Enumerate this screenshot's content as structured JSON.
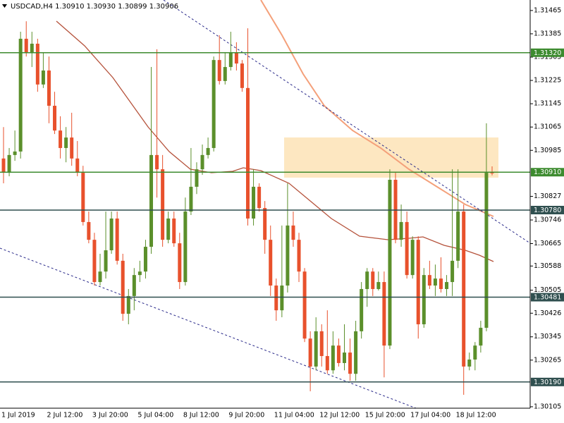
{
  "chart_data": {
    "type": "candlestick",
    "title": "USDCAD,H4  1.30910 1.30930 1.30899 1.30906",
    "categories": [
      "1 Jul 2019",
      null,
      null,
      null,
      null,
      null,
      null,
      null,
      "2 Jul 12:00",
      null,
      null,
      null,
      null,
      null,
      null,
      null,
      "3 Jul 20:00",
      null,
      null,
      null,
      null,
      null,
      null,
      null,
      "5 Jul 04:00",
      null,
      null,
      null,
      null,
      null,
      null,
      null,
      "8 Jul 12:00",
      null,
      null,
      null,
      null,
      null,
      null,
      null,
      "9 Jul 20:00",
      null,
      null,
      null,
      null,
      null,
      null,
      null,
      "11 Jul 04:00",
      null,
      null,
      null,
      null,
      null,
      null,
      null,
      "12 Jul 12:00",
      null,
      null,
      null,
      null,
      null,
      null,
      null,
      "15 Jul 20:00",
      null,
      null,
      null,
      null,
      null,
      null,
      null,
      "17 Jul 04:00",
      null,
      null,
      null,
      null,
      null,
      null,
      null,
      "18 Jul 12:00",
      null,
      null,
      null,
      null,
      null,
      null
    ],
    "open": [
      1.30957,
      1.30908,
      1.30969,
      1.30981,
      1.31368,
      1.3132,
      1.31351,
      1.31211,
      1.31259,
      1.31138,
      1.31053,
      1.30993,
      1.31029,
      1.30957,
      1.30908,
      1.30739,
      1.30678,
      1.30533,
      1.30569,
      1.30642,
      1.30751,
      1.30606,
      1.30424,
      1.30485,
      1.30557,
      1.30569,
      1.30654,
      1.30969,
      1.3092,
      1.30678,
      1.30751,
      1.30666,
      1.30533,
      1.30775,
      1.3086,
      1.3092,
      1.30969,
      1.30993,
      1.31295,
      1.31223,
      1.31271,
      1.3132,
      1.31283,
      1.31199,
      1.30751,
      1.3086,
      1.30787,
      1.30678,
      1.30521,
      1.30436,
      1.30521,
      1.30727,
      1.30678,
      1.30569,
      1.30339,
      1.30243,
      1.30364,
      1.30279,
      1.3023,
      1.30315,
      1.30255,
      1.30291,
      1.30218,
      1.30364,
      1.30509,
      1.30569,
      1.30509,
      1.30533,
      1.30315,
      1.30884,
      1.30678,
      1.30739,
      1.30557,
      1.30678,
      1.30388,
      1.30557,
      1.30521,
      1.30545,
      1.30509,
      1.30533,
      1.30606,
      1.30775,
      1.30243,
      1.30267,
      1.30315,
      1.30376,
      1.3091
    ],
    "high": [
      1.31065,
      1.30993,
      1.31053,
      1.31392,
      1.31428,
      1.31392,
      1.31368,
      1.3132,
      1.31307,
      1.31186,
      1.31102,
      1.31065,
      1.31114,
      1.31017,
      1.30932,
      1.30775,
      1.30702,
      1.3063,
      1.30775,
      1.30775,
      1.30775,
      1.3063,
      1.30509,
      1.30581,
      1.30606,
      1.30678,
      1.31271,
      1.31332,
      1.30969,
      1.30775,
      1.30775,
      1.30702,
      1.30823,
      1.30993,
      1.30944,
      1.31005,
      1.31029,
      1.31307,
      1.3138,
      1.3132,
      1.31392,
      1.31356,
      1.31295,
      1.31404,
      1.3092,
      1.30872,
      1.30811,
      1.30727,
      1.30545,
      1.30727,
      1.30872,
      1.30775,
      1.30702,
      1.30581,
      1.30364,
      1.30412,
      1.30388,
      1.30436,
      1.30364,
      1.30339,
      1.30388,
      1.30339,
      1.304,
      1.30533,
      1.30581,
      1.30581,
      1.30569,
      1.30569,
      1.3092,
      1.30908,
      1.30799,
      1.30775,
      1.3069,
      1.3069,
      1.30581,
      1.30606,
      1.30593,
      1.30618,
      1.30557,
      1.3092,
      1.3092,
      1.30799,
      1.30291,
      1.30327,
      1.304,
      1.31078,
      1.3093
    ],
    "low": [
      1.30872,
      1.30896,
      1.30949,
      1.30957,
      1.31307,
      1.31271,
      1.31186,
      1.31199,
      1.31078,
      1.31041,
      1.30957,
      1.30944,
      1.30932,
      1.30896,
      1.30727,
      1.30666,
      1.30521,
      1.30521,
      1.30545,
      1.3063,
      1.30593,
      1.304,
      1.30388,
      1.30436,
      1.30533,
      1.30545,
      1.3063,
      1.30823,
      1.30654,
      1.30666,
      1.30654,
      1.30509,
      1.30521,
      1.30763,
      1.30835,
      1.30901,
      1.30957,
      1.30981,
      1.31211,
      1.31211,
      1.31259,
      1.31259,
      1.31186,
      1.30727,
      1.30727,
      1.30775,
      1.3063,
      1.30485,
      1.304,
      1.30412,
      1.30497,
      1.30654,
      1.30533,
      1.30327,
      1.30158,
      1.3023,
      1.30243,
      1.30218,
      1.30218,
      1.30243,
      1.3023,
      1.30194,
      1.30194,
      1.30339,
      1.30448,
      1.30485,
      1.30504,
      1.30206,
      1.30303,
      1.30666,
      1.30654,
      1.30545,
      1.30545,
      1.30339,
      1.30376,
      1.30509,
      1.30485,
      1.30497,
      1.30485,
      1.30485,
      1.30581,
      1.30146,
      1.3023,
      1.3023,
      1.30291,
      1.30364,
      1.30899
    ],
    "close": [
      1.30908,
      1.30969,
      1.30981,
      1.31368,
      1.3132,
      1.31351,
      1.31211,
      1.31259,
      1.31138,
      1.31053,
      1.30993,
      1.31029,
      1.30957,
      1.30908,
      1.30739,
      1.30678,
      1.30533,
      1.30569,
      1.30642,
      1.30751,
      1.30606,
      1.30424,
      1.30485,
      1.30557,
      1.30569,
      1.30654,
      1.30969,
      1.3092,
      1.30678,
      1.30751,
      1.30666,
      1.30533,
      1.30775,
      1.3086,
      1.3092,
      1.30969,
      1.30993,
      1.31295,
      1.31223,
      1.31271,
      1.3132,
      1.31283,
      1.31199,
      1.30751,
      1.3086,
      1.30787,
      1.30678,
      1.30521,
      1.30436,
      1.30521,
      1.30727,
      1.30678,
      1.30569,
      1.30339,
      1.30243,
      1.30364,
      1.30279,
      1.3023,
      1.30315,
      1.30255,
      1.30291,
      1.30218,
      1.30364,
      1.30509,
      1.30569,
      1.30509,
      1.30533,
      1.30315,
      1.30884,
      1.30678,
      1.30739,
      1.30557,
      1.30678,
      1.30388,
      1.30557,
      1.30521,
      1.30545,
      1.30509,
      1.30533,
      1.30606,
      1.30775,
      1.30243,
      1.30267,
      1.30315,
      1.30376,
      1.30908,
      1.30906
    ],
    "up_color": "#5b8f2b",
    "down_color": "#e8512c",
    "ylim": [
      1.301,
      1.31501
    ],
    "yticks": [
      1.30105,
      1.30265,
      1.30345,
      1.30426,
      1.30505,
      1.30588,
      1.30665,
      1.30746,
      1.30827,
      1.30985,
      1.31065,
      1.31145,
      1.31225,
      1.31305,
      1.31385,
      1.31465
    ],
    "levels": [
      {
        "value": 1.3132,
        "label": "1.31320",
        "color": "#3d8b2f"
      },
      {
        "value": 1.3091,
        "label": "1.30910",
        "color": "#3d8b2f"
      },
      {
        "value": 1.3078,
        "label": "1.30780",
        "color": "#2f4f4f"
      },
      {
        "value": 1.30481,
        "color": "#2f4f4f"
      },
      {
        "value": 1.3019,
        "label": "1.30190",
        "color": "#2f4f4f"
      }
    ]
  }
}
